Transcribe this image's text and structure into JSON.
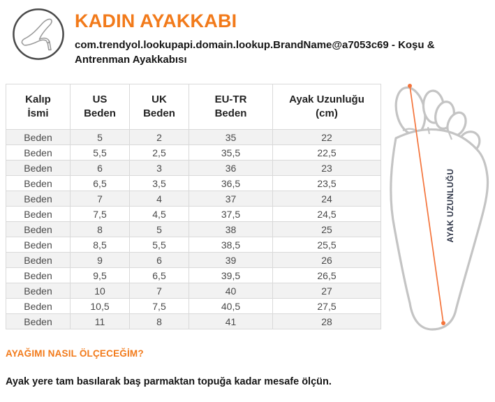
{
  "header": {
    "icon": "high-heel-shoe-icon",
    "title": "KADIN AYAKKABI",
    "subtitle": "com.trendyol.lookupapi.domain.lookup.BrandName@a7053c69 - Koşu & Antrenman Ayakkabısı"
  },
  "size_table": {
    "columns": [
      "Kalıp\nİsmi",
      "US\nBeden",
      "UK\nBeden",
      "EU-TR\nBeden",
      "Ayak Uzunluğu\n(cm)"
    ],
    "rows": [
      [
        "Beden",
        "5",
        "2",
        "35",
        "22"
      ],
      [
        "Beden",
        "5,5",
        "2,5",
        "35,5",
        "22,5"
      ],
      [
        "Beden",
        "6",
        "3",
        "36",
        "23"
      ],
      [
        "Beden",
        "6,5",
        "3,5",
        "36,5",
        "23,5"
      ],
      [
        "Beden",
        "7",
        "4",
        "37",
        "24"
      ],
      [
        "Beden",
        "7,5",
        "4,5",
        "37,5",
        "24,5"
      ],
      [
        "Beden",
        "8",
        "5",
        "38",
        "25"
      ],
      [
        "Beden",
        "8,5",
        "5,5",
        "38,5",
        "25,5"
      ],
      [
        "Beden",
        "9",
        "6",
        "39",
        "26"
      ],
      [
        "Beden",
        "9,5",
        "6,5",
        "39,5",
        "26,5"
      ],
      [
        "Beden",
        "10",
        "7",
        "40",
        "27"
      ],
      [
        "Beden",
        "10,5",
        "7,5",
        "40,5",
        "27,5"
      ],
      [
        "Beden",
        "11",
        "8",
        "41",
        "28"
      ]
    ]
  },
  "foot_diagram": {
    "label": "AYAK UZUNLUĞU"
  },
  "footer": {
    "heading": "AYAĞIMI NASIL ÖLÇECEĞİM?",
    "instruction": "Ayak yere tam basılarak baş parmaktan topuğa kadar mesafe ölçün."
  },
  "colors": {
    "accent_orange": "#f27a1a",
    "measure_line": "#f4743b",
    "foot_outline": "#c4c4c4",
    "table_border": "#d9d9d9",
    "row_alt_bg": "#f2f2f2",
    "label_navy": "#2d3446"
  }
}
